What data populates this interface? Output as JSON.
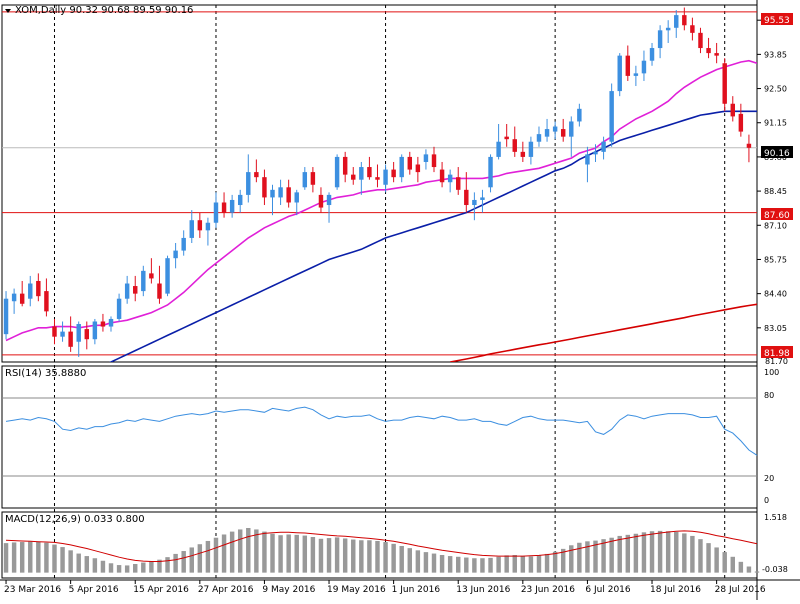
{
  "colors": {
    "background": "#ffffff",
    "border": "#000000",
    "bull_candle": "#3c8fe0",
    "bear_candle": "#e0101e",
    "sma20": "#e020d8",
    "sma50": "#0a1fa8",
    "sma200": "#d40000",
    "hline": "#e01010",
    "rsi_line": "#3c8fe0",
    "macd_hist": "#999999",
    "macd_signal": "#d00000",
    "label_text": "#ffffff"
  },
  "price_panel": {
    "header": "XOM,Daily  90.32 90.68 89.59 90.16",
    "current_price_label": "90.16",
    "resistance_label": "95.53",
    "support_label": "87.60",
    "low_label": "81.98",
    "bottom_tick": "81.70"
  },
  "rsi_panel": {
    "header": "RSI(14) 35.8880",
    "ticks": [
      "100",
      "80",
      "20",
      "0"
    ]
  },
  "macd_panel": {
    "header": "MACD(12,26,9) 0.033 0.800",
    "top_tick": "1.518",
    "bottom_tick": "-0.038"
  },
  "chart_data": {
    "type": "candlestick",
    "symbol": "XOM",
    "timeframe": "Daily",
    "last_bar": {
      "open": 90.32,
      "high": 90.68,
      "low": 89.59,
      "close": 90.16
    },
    "price_axis": {
      "ylim": [
        81.7,
        95.8
      ],
      "ticks": [
        95.2,
        93.85,
        92.5,
        91.15,
        89.8,
        88.45,
        87.1,
        85.75,
        84.4,
        83.05,
        81.7
      ]
    },
    "x_tick_labels": [
      "23 Mar 2016",
      "5 Apr 2016",
      "15 Apr 2016",
      "27 Apr 2016",
      "9 May 2016",
      "19 May 2016",
      "1 Jun 2016",
      "13 Jun 2016",
      "23 Jun 2016",
      "6 Jul 2016",
      "18 Jul 2016",
      "28 Jul 2016"
    ],
    "x_tick_index": [
      0,
      8,
      16,
      24,
      32,
      40,
      48,
      56,
      64,
      72,
      80,
      88
    ],
    "horizontal_lines": [
      95.53,
      87.6,
      81.98
    ],
    "vertical_gridlines_at_index": [
      6,
      26,
      47,
      68,
      89
    ],
    "candles": [
      {
        "o": 82.8,
        "h": 84.5,
        "l": 82.6,
        "c": 84.2
      },
      {
        "o": 84.1,
        "h": 84.6,
        "l": 83.6,
        "c": 84.4
      },
      {
        "o": 84.4,
        "h": 84.9,
        "l": 83.9,
        "c": 84.0
      },
      {
        "o": 84.2,
        "h": 85.1,
        "l": 83.9,
        "c": 84.8
      },
      {
        "o": 84.9,
        "h": 85.2,
        "l": 84.1,
        "c": 84.3
      },
      {
        "o": 84.5,
        "h": 85.0,
        "l": 83.5,
        "c": 83.7
      },
      {
        "o": 83.1,
        "h": 83.4,
        "l": 82.4,
        "c": 82.7
      },
      {
        "o": 82.7,
        "h": 83.3,
        "l": 82.5,
        "c": 82.9
      },
      {
        "o": 82.9,
        "h": 83.5,
        "l": 82.1,
        "c": 82.3
      },
      {
        "o": 82.5,
        "h": 83.3,
        "l": 81.9,
        "c": 83.2
      },
      {
        "o": 83.0,
        "h": 83.3,
        "l": 82.2,
        "c": 82.6
      },
      {
        "o": 82.6,
        "h": 83.4,
        "l": 82.4,
        "c": 83.3
      },
      {
        "o": 83.3,
        "h": 83.6,
        "l": 82.9,
        "c": 83.1
      },
      {
        "o": 83.1,
        "h": 83.5,
        "l": 82.9,
        "c": 83.4
      },
      {
        "o": 83.4,
        "h": 84.4,
        "l": 83.3,
        "c": 84.2
      },
      {
        "o": 84.2,
        "h": 85.1,
        "l": 84.0,
        "c": 84.8
      },
      {
        "o": 84.7,
        "h": 85.1,
        "l": 84.1,
        "c": 84.4
      },
      {
        "o": 84.5,
        "h": 85.5,
        "l": 84.3,
        "c": 85.3
      },
      {
        "o": 85.2,
        "h": 85.8,
        "l": 84.8,
        "c": 85.0
      },
      {
        "o": 84.8,
        "h": 85.5,
        "l": 84.0,
        "c": 84.2
      },
      {
        "o": 84.4,
        "h": 85.9,
        "l": 84.3,
        "c": 85.8
      },
      {
        "o": 85.8,
        "h": 86.4,
        "l": 85.4,
        "c": 86.1
      },
      {
        "o": 86.1,
        "h": 86.9,
        "l": 85.9,
        "c": 86.6
      },
      {
        "o": 86.6,
        "h": 87.7,
        "l": 86.4,
        "c": 87.3
      },
      {
        "o": 87.3,
        "h": 87.6,
        "l": 86.6,
        "c": 86.9
      },
      {
        "o": 86.9,
        "h": 87.4,
        "l": 86.3,
        "c": 87.2
      },
      {
        "o": 87.2,
        "h": 88.4,
        "l": 87.0,
        "c": 88.0
      },
      {
        "o": 88.0,
        "h": 88.4,
        "l": 87.4,
        "c": 87.6
      },
      {
        "o": 87.6,
        "h": 88.3,
        "l": 87.4,
        "c": 88.1
      },
      {
        "o": 87.9,
        "h": 88.5,
        "l": 87.6,
        "c": 88.3
      },
      {
        "o": 88.3,
        "h": 89.9,
        "l": 88.0,
        "c": 89.2
      },
      {
        "o": 89.2,
        "h": 89.7,
        "l": 88.8,
        "c": 89.0
      },
      {
        "o": 89.0,
        "h": 89.3,
        "l": 87.9,
        "c": 88.2
      },
      {
        "o": 88.2,
        "h": 88.7,
        "l": 87.5,
        "c": 88.5
      },
      {
        "o": 88.2,
        "h": 88.9,
        "l": 87.9,
        "c": 88.6
      },
      {
        "o": 88.6,
        "h": 88.9,
        "l": 87.8,
        "c": 88.0
      },
      {
        "o": 88.0,
        "h": 88.5,
        "l": 87.5,
        "c": 88.4
      },
      {
        "o": 88.6,
        "h": 89.4,
        "l": 88.5,
        "c": 89.2
      },
      {
        "o": 89.2,
        "h": 89.4,
        "l": 88.4,
        "c": 88.7
      },
      {
        "o": 88.3,
        "h": 88.6,
        "l": 87.6,
        "c": 87.8
      },
      {
        "o": 87.9,
        "h": 88.4,
        "l": 87.2,
        "c": 88.3
      },
      {
        "o": 88.6,
        "h": 89.9,
        "l": 88.5,
        "c": 89.8
      },
      {
        "o": 89.8,
        "h": 90.0,
        "l": 88.8,
        "c": 89.1
      },
      {
        "o": 89.1,
        "h": 89.4,
        "l": 88.7,
        "c": 88.9
      },
      {
        "o": 88.9,
        "h": 89.6,
        "l": 88.3,
        "c": 89.4
      },
      {
        "o": 89.4,
        "h": 89.8,
        "l": 88.9,
        "c": 89.0
      },
      {
        "o": 89.0,
        "h": 89.5,
        "l": 88.6,
        "c": 88.9
      },
      {
        "o": 88.7,
        "h": 89.5,
        "l": 88.4,
        "c": 89.3
      },
      {
        "o": 89.3,
        "h": 89.6,
        "l": 88.8,
        "c": 89.0
      },
      {
        "o": 89.0,
        "h": 89.9,
        "l": 88.8,
        "c": 89.8
      },
      {
        "o": 89.8,
        "h": 90.0,
        "l": 89.1,
        "c": 89.3
      },
      {
        "o": 89.5,
        "h": 89.8,
        "l": 88.8,
        "c": 89.2
      },
      {
        "o": 89.6,
        "h": 90.1,
        "l": 89.3,
        "c": 89.9
      },
      {
        "o": 89.9,
        "h": 90.2,
        "l": 89.2,
        "c": 89.4
      },
      {
        "o": 89.3,
        "h": 89.6,
        "l": 88.6,
        "c": 88.8
      },
      {
        "o": 88.8,
        "h": 89.3,
        "l": 88.4,
        "c": 89.1
      },
      {
        "o": 89.0,
        "h": 89.4,
        "l": 88.3,
        "c": 88.5
      },
      {
        "o": 88.5,
        "h": 89.2,
        "l": 87.6,
        "c": 87.9
      },
      {
        "o": 87.9,
        "h": 88.4,
        "l": 87.3,
        "c": 88.1
      },
      {
        "o": 88.1,
        "h": 88.5,
        "l": 87.6,
        "c": 88.2
      },
      {
        "o": 88.6,
        "h": 89.9,
        "l": 88.4,
        "c": 89.8
      },
      {
        "o": 89.8,
        "h": 91.1,
        "l": 89.7,
        "c": 90.4
      },
      {
        "o": 90.6,
        "h": 91.1,
        "l": 90.2,
        "c": 90.5
      },
      {
        "o": 90.5,
        "h": 91.0,
        "l": 89.8,
        "c": 90.0
      },
      {
        "o": 90.0,
        "h": 90.4,
        "l": 89.6,
        "c": 89.8
      },
      {
        "o": 89.8,
        "h": 90.6,
        "l": 89.5,
        "c": 90.4
      },
      {
        "o": 90.4,
        "h": 91.0,
        "l": 90.2,
        "c": 90.7
      },
      {
        "o": 90.6,
        "h": 91.3,
        "l": 90.4,
        "c": 90.9
      },
      {
        "o": 90.8,
        "h": 91.2,
        "l": 90.5,
        "c": 91.0
      },
      {
        "o": 90.9,
        "h": 91.3,
        "l": 90.4,
        "c": 90.6
      },
      {
        "o": 90.6,
        "h": 91.4,
        "l": 89.8,
        "c": 91.2
      },
      {
        "o": 91.2,
        "h": 91.9,
        "l": 91.0,
        "c": 91.7
      },
      {
        "o": 89.5,
        "h": 90.2,
        "l": 88.8,
        "c": 89.9
      },
      {
        "o": 89.9,
        "h": 90.3,
        "l": 89.6,
        "c": 90.0
      },
      {
        "o": 90.0,
        "h": 90.6,
        "l": 89.7,
        "c": 90.4
      },
      {
        "o": 90.4,
        "h": 92.7,
        "l": 90.2,
        "c": 92.4
      },
      {
        "o": 92.4,
        "h": 93.9,
        "l": 92.2,
        "c": 93.8
      },
      {
        "o": 93.8,
        "h": 94.2,
        "l": 92.8,
        "c": 93.0
      },
      {
        "o": 93.0,
        "h": 93.4,
        "l": 92.6,
        "c": 93.1
      },
      {
        "o": 93.1,
        "h": 94.0,
        "l": 92.8,
        "c": 93.6
      },
      {
        "o": 93.6,
        "h": 94.3,
        "l": 93.4,
        "c": 94.1
      },
      {
        "o": 94.1,
        "h": 95.0,
        "l": 93.7,
        "c": 94.8
      },
      {
        "o": 94.8,
        "h": 95.2,
        "l": 94.3,
        "c": 94.9
      },
      {
        "o": 94.9,
        "h": 95.6,
        "l": 94.5,
        "c": 95.4
      },
      {
        "o": 95.4,
        "h": 95.7,
        "l": 94.8,
        "c": 95.0
      },
      {
        "o": 95.0,
        "h": 95.3,
        "l": 94.4,
        "c": 94.7
      },
      {
        "o": 94.7,
        "h": 94.9,
        "l": 93.9,
        "c": 94.1
      },
      {
        "o": 94.1,
        "h": 94.5,
        "l": 93.7,
        "c": 93.9
      },
      {
        "o": 93.9,
        "h": 94.3,
        "l": 93.5,
        "c": 93.8
      },
      {
        "o": 93.5,
        "h": 93.7,
        "l": 91.6,
        "c": 91.9
      },
      {
        "o": 91.9,
        "h": 92.2,
        "l": 91.2,
        "c": 91.4
      },
      {
        "o": 91.5,
        "h": 91.9,
        "l": 90.6,
        "c": 90.8
      },
      {
        "o": 90.32,
        "h": 90.68,
        "l": 89.59,
        "c": 90.16
      }
    ],
    "sma20": [
      82.55,
      82.7,
      82.85,
      82.95,
      83.05,
      83.05,
      83.1,
      83.1,
      83.1,
      83.05,
      83.1,
      83.15,
      83.15,
      83.25,
      83.3,
      83.35,
      83.45,
      83.55,
      83.65,
      83.8,
      83.95,
      84.2,
      84.45,
      84.75,
      85.05,
      85.35,
      85.6,
      85.85,
      86.1,
      86.35,
      86.6,
      86.8,
      87.0,
      87.15,
      87.3,
      87.45,
      87.55,
      87.7,
      87.85,
      88.0,
      88.1,
      88.2,
      88.25,
      88.3,
      88.4,
      88.45,
      88.5,
      88.5,
      88.55,
      88.6,
      88.65,
      88.7,
      88.8,
      88.85,
      88.9,
      88.95,
      88.95,
      88.95,
      88.95,
      88.95,
      89.0,
      89.05,
      89.15,
      89.2,
      89.25,
      89.3,
      89.35,
      89.45,
      89.55,
      89.65,
      89.75,
      89.95,
      90.05,
      90.15,
      90.4,
      90.6,
      90.9,
      91.1,
      91.3,
      91.45,
      91.6,
      91.8,
      92.0,
      92.3,
      92.55,
      92.75,
      92.95,
      93.1,
      93.25,
      93.35,
      93.45,
      93.55,
      93.6,
      93.5
    ],
    "sma50": [
      79.6,
      79.75,
      79.9,
      80.05,
      80.2,
      80.35,
      80.5,
      80.65,
      80.8,
      80.95,
      81.15,
      81.35,
      81.55,
      81.7,
      81.85,
      82.0,
      82.15,
      82.3,
      82.45,
      82.6,
      82.75,
      82.9,
      83.05,
      83.2,
      83.35,
      83.5,
      83.65,
      83.8,
      83.95,
      84.1,
      84.25,
      84.4,
      84.55,
      84.7,
      84.85,
      85.0,
      85.15,
      85.3,
      85.45,
      85.6,
      85.75,
      85.85,
      85.95,
      86.05,
      86.15,
      86.3,
      86.45,
      86.6,
      86.7,
      86.8,
      86.9,
      87.0,
      87.1,
      87.2,
      87.3,
      87.4,
      87.5,
      87.6,
      87.75,
      87.9,
      88.05,
      88.2,
      88.35,
      88.5,
      88.65,
      88.8,
      88.95,
      89.1,
      89.25,
      89.35,
      89.5,
      89.7,
      89.85,
      90.0,
      90.15,
      90.3,
      90.45,
      90.55,
      90.65,
      90.75,
      90.85,
      90.95,
      91.05,
      91.15,
      91.25,
      91.35,
      91.45,
      91.5,
      91.55,
      91.6,
      91.6,
      91.6,
      91.6,
      91.6
    ],
    "sma200_start_index": 55,
    "sma200": [
      81.7,
      81.76,
      81.82,
      81.88,
      81.95,
      82.02,
      82.08,
      82.14,
      82.2,
      82.26,
      82.32,
      82.38,
      82.43,
      82.49,
      82.55,
      82.61,
      82.67,
      82.73,
      82.79,
      82.85,
      82.91,
      82.97,
      83.03,
      83.09,
      83.15,
      83.21,
      83.27,
      83.33,
      83.39,
      83.45,
      83.52,
      83.58,
      83.64,
      83.7,
      83.76,
      83.82,
      83.88,
      83.93,
      83.98,
      84.02
    ],
    "rsi": {
      "ylim": [
        0,
        100
      ],
      "levels": [
        80,
        20
      ],
      "values": [
        62,
        63,
        64,
        63,
        65,
        64,
        62,
        56,
        55,
        57,
        56,
        58,
        58,
        60,
        61,
        63,
        62,
        64,
        63,
        62,
        64,
        66,
        67,
        68,
        67,
        68,
        70,
        69,
        70,
        71,
        71,
        70,
        69,
        72,
        71,
        70,
        72,
        73,
        71,
        67,
        64,
        66,
        65,
        66,
        66,
        67,
        64,
        62,
        63,
        63,
        65,
        66,
        65,
        64,
        66,
        65,
        63,
        63,
        64,
        62,
        62,
        60,
        59,
        62,
        65,
        66,
        64,
        63,
        63,
        63,
        62,
        61,
        62,
        54,
        52,
        56,
        63,
        67,
        66,
        64,
        66,
        67,
        68,
        68,
        68,
        67,
        65,
        65,
        66,
        56,
        53,
        47,
        40,
        35.888
      ]
    },
    "macd": {
      "ylim": [
        -0.038,
        1.518
      ],
      "histogram": [
        0.82,
        0.84,
        0.85,
        0.86,
        0.86,
        0.83,
        0.78,
        0.71,
        0.62,
        0.53,
        0.46,
        0.4,
        0.33,
        0.26,
        0.21,
        0.2,
        0.24,
        0.28,
        0.32,
        0.36,
        0.43,
        0.52,
        0.6,
        0.7,
        0.79,
        0.88,
        0.97,
        1.06,
        1.14,
        1.2,
        1.24,
        1.2,
        1.14,
        1.08,
        1.04,
        1.06,
        1.05,
        1.03,
        0.99,
        0.94,
        0.96,
        0.98,
        0.95,
        0.92,
        0.9,
        0.9,
        0.88,
        0.85,
        0.8,
        0.74,
        0.68,
        0.62,
        0.57,
        0.53,
        0.49,
        0.46,
        0.44,
        0.42,
        0.4,
        0.4,
        0.41,
        0.44,
        0.48,
        0.49,
        0.46,
        0.45,
        0.48,
        0.52,
        0.58,
        0.66,
        0.76,
        0.83,
        0.87,
        0.89,
        0.93,
        0.97,
        1.02,
        1.05,
        1.08,
        1.12,
        1.15,
        1.16,
        1.15,
        1.13,
        1.09,
        1.02,
        0.93,
        0.82,
        0.7,
        0.57,
        0.44,
        0.3,
        0.17,
        0.033
      ],
      "signal": [
        0.9,
        0.89,
        0.88,
        0.87,
        0.86,
        0.85,
        0.84,
        0.81,
        0.77,
        0.72,
        0.67,
        0.61,
        0.55,
        0.49,
        0.43,
        0.38,
        0.34,
        0.32,
        0.31,
        0.31,
        0.33,
        0.36,
        0.41,
        0.47,
        0.54,
        0.61,
        0.69,
        0.77,
        0.85,
        0.93,
        1.0,
        1.05,
        1.09,
        1.11,
        1.12,
        1.12,
        1.11,
        1.1,
        1.08,
        1.06,
        1.04,
        1.02,
        1.01,
        0.99,
        0.97,
        0.95,
        0.93,
        0.9,
        0.87,
        0.83,
        0.79,
        0.74,
        0.7,
        0.66,
        0.62,
        0.59,
        0.56,
        0.53,
        0.5,
        0.48,
        0.47,
        0.46,
        0.46,
        0.46,
        0.46,
        0.47,
        0.48,
        0.5,
        0.53,
        0.57,
        0.62,
        0.67,
        0.72,
        0.77,
        0.82,
        0.87,
        0.92,
        0.96,
        1.0,
        1.04,
        1.07,
        1.1,
        1.13,
        1.15,
        1.16,
        1.15,
        1.12,
        1.08,
        1.03,
        0.99,
        0.94,
        0.9,
        0.85,
        0.8
      ]
    }
  }
}
